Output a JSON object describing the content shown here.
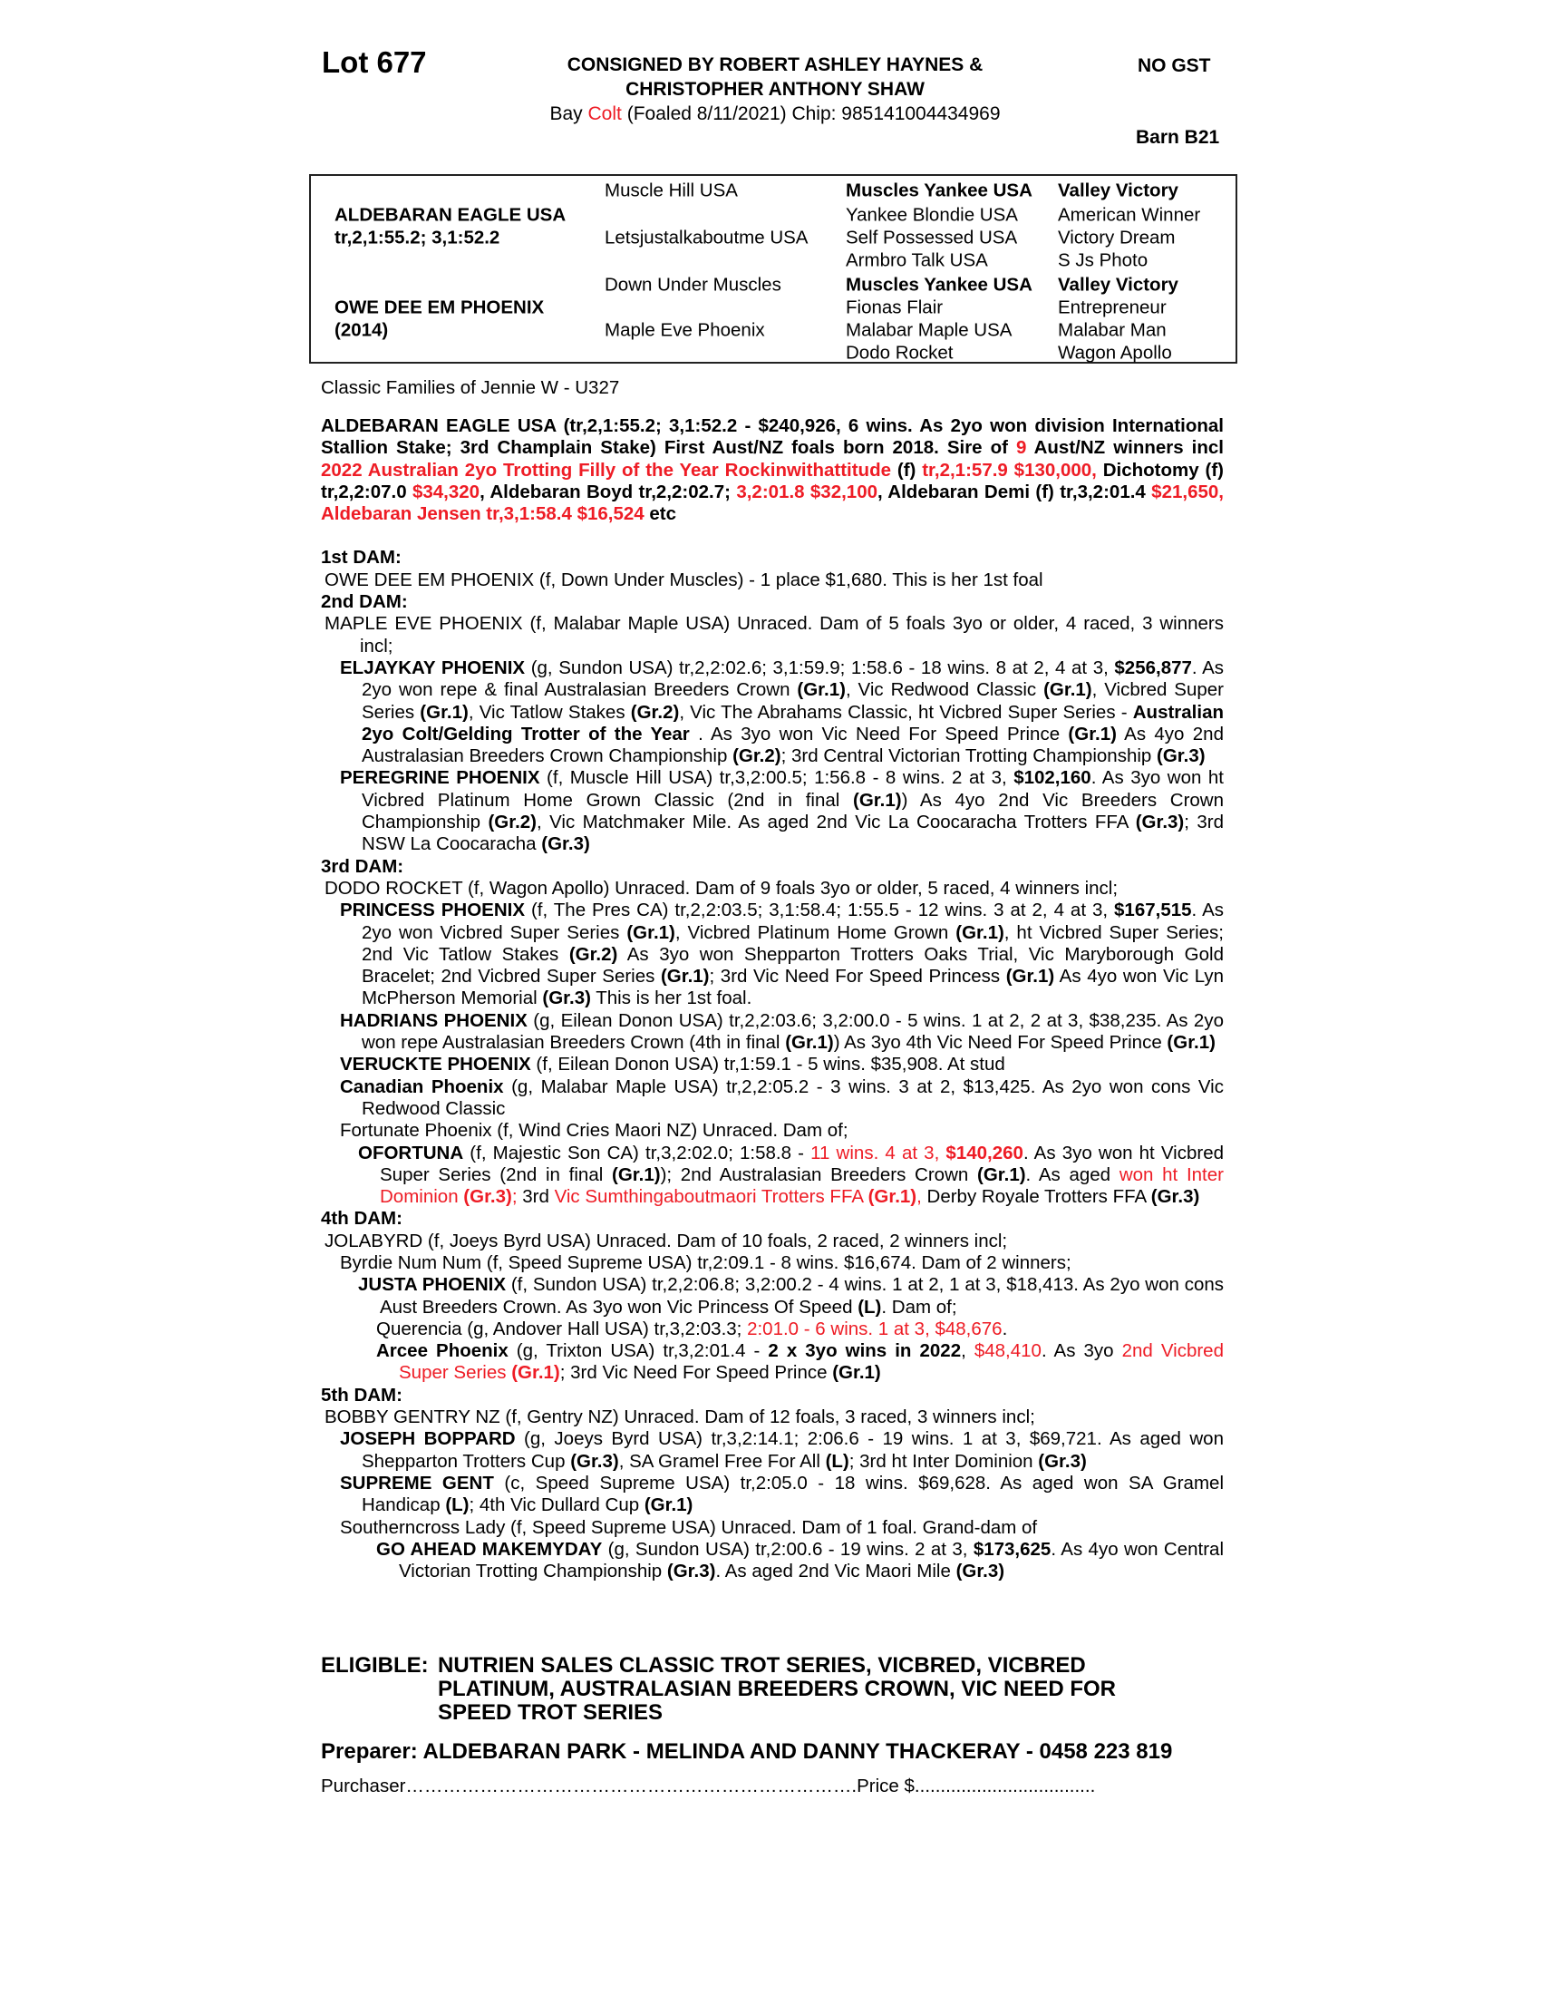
{
  "header": {
    "lot": "Lot 677",
    "consigned_line1": "CONSIGNED BY ROBERT ASHLEY HAYNES &",
    "consigned_line2": "CHRISTOPHER ANTHONY SHAW",
    "colour": "Bay",
    "sex": "Colt",
    "foaled_chip": "(Foaled 8/11/2021) Chip: 985141004434969",
    "gst": "NO GST",
    "barn": "Barn B21"
  },
  "colors": {
    "highlight": "#ee1c25",
    "text": "#000000"
  },
  "pedigree": {
    "col1": [
      "",
      "ALDEBARAN EAGLE USA",
      "tr,2,1:55.2; 3,1:52.2",
      "",
      "",
      "OWE DEE EM PHOENIX",
      "(2014)",
      ""
    ],
    "col2": [
      "Muscle Hill USA",
      "",
      "Letsjustalkaboutme USA",
      "",
      "Down Under Muscles",
      "",
      "Maple Eve Phoenix",
      ""
    ],
    "col3": [
      "Muscles Yankee USA",
      "Yankee Blondie USA",
      "Self Possessed USA",
      "Armbro Talk USA",
      "Muscles Yankee USA",
      "Fionas Flair",
      "Malabar Maple USA",
      "Dodo Rocket"
    ],
    "col4": [
      "Valley Victory",
      "American Winner",
      "Victory Dream",
      "S Js Photo",
      "Valley Victory",
      "Entrepreneur",
      "Malabar Man",
      "Wagon Apollo"
    ],
    "bold_rows": [
      0,
      4
    ]
  },
  "family": "Classic Families of Jennie W - U327",
  "body": {
    "paragraphs": [
      {
        "cls": "sire",
        "segs": [
          {
            "t": "ALDEBARAN EAGLE USA (tr,2,1:55.2; 3,1:52.2 - $240,926, 6 wins. As 2yo won division International Stallion Stake; 3rd Champlain Stake) First Aust/NZ foals born 2018. Sire of "
          },
          {
            "t": "9",
            "r": true
          },
          {
            "t": " Aust/NZ winners incl "
          },
          {
            "t": "2022 Australian 2yo Trotting Filly of the Year Rockinwithattitude",
            "r": true
          },
          {
            "t": " (f) "
          },
          {
            "t": "tr,2,1:57.9 $130,000,",
            "r": true
          },
          {
            "t": " Dichotomy (f) tr,2,2:07.0 "
          },
          {
            "t": "$34,320",
            "r": true
          },
          {
            "t": ", Aldebaran Boyd tr,2,2:02.7; "
          },
          {
            "t": "3,2:01.8 $32,100",
            "r": true
          },
          {
            "t": ", Aldebaran Demi (f) tr,3,2:01.4 "
          },
          {
            "t": "$21,650, Aldebaran Jensen tr,3,1:58.4 $16,524",
            "r": true
          },
          {
            "t": " etc"
          }
        ]
      },
      {
        "cls": "head",
        "segs": [
          {
            "t": "1st DAM:"
          }
        ]
      },
      {
        "cls": "dam",
        "segs": [
          {
            "t": "OWE DEE EM PHOENIX (f, Down Under Muscles) - 1 place $1,680. This is her 1st foal"
          }
        ]
      },
      {
        "cls": "head",
        "segs": [
          {
            "t": "2nd DAM:"
          }
        ]
      },
      {
        "cls": "dam",
        "segs": [
          {
            "t": "MAPLE EVE PHOENIX (f, Malabar Maple USA) Unraced. Dam of 5 foals 3yo or older, 4 raced, 3 winners incl;"
          }
        ]
      },
      {
        "cls": "l1",
        "segs": [
          {
            "t": "ELJAYKAY PHOENIX",
            "b": true
          },
          {
            "t": " (g, Sundon USA) tr,2,2:02.6; 3,1:59.9; 1:58.6 - 18 wins. 8 at 2, 4 at 3, "
          },
          {
            "t": "$256,877",
            "b": true
          },
          {
            "t": ". As 2yo won repe & final Australasian Breeders Crown "
          },
          {
            "t": "(Gr.1)",
            "b": true
          },
          {
            "t": ", Vic Redwood Classic "
          },
          {
            "t": "(Gr.1)",
            "b": true
          },
          {
            "t": ", Vicbred Super Series "
          },
          {
            "t": "(Gr.1)",
            "b": true
          },
          {
            "t": ", Vic Tatlow Stakes "
          },
          {
            "t": "(Gr.2)",
            "b": true
          },
          {
            "t": ", Vic The Abrahams Classic, ht Vicbred Super Series - "
          },
          {
            "t": "Australian 2yo Colt/Gelding Trotter of the Year",
            "b": true
          },
          {
            "t": " . As 3yo won Vic Need For Speed Prince "
          },
          {
            "t": "(Gr.1)",
            "b": true
          },
          {
            "t": " As 4yo 2nd Australasian Breeders Crown Championship "
          },
          {
            "t": "(Gr.2)",
            "b": true
          },
          {
            "t": "; 3rd Central Victorian Trotting Championship "
          },
          {
            "t": "(Gr.3)",
            "b": true
          }
        ]
      },
      {
        "cls": "l1",
        "segs": [
          {
            "t": "PEREGRINE PHOENIX",
            "b": true
          },
          {
            "t": " (f, Muscle Hill USA) tr,3,2:00.5; 1:56.8 - 8 wins. 2 at 3, "
          },
          {
            "t": "$102,160",
            "b": true
          },
          {
            "t": ". As 3yo won ht Vicbred Platinum Home Grown Classic (2nd in final "
          },
          {
            "t": "(Gr.1)",
            "b": true
          },
          {
            "t": ") As 4yo 2nd Vic Breeders Crown Championship "
          },
          {
            "t": "(Gr.2)",
            "b": true
          },
          {
            "t": ", Vic Matchmaker Mile. As aged 2nd Vic La Coocaracha Trotters FFA "
          },
          {
            "t": "(Gr.3)",
            "b": true
          },
          {
            "t": "; 3rd NSW La Coocaracha "
          },
          {
            "t": "(Gr.3)",
            "b": true
          }
        ]
      },
      {
        "cls": "head",
        "segs": [
          {
            "t": "3rd DAM:"
          }
        ]
      },
      {
        "cls": "dam",
        "segs": [
          {
            "t": "DODO ROCKET (f, Wagon Apollo) Unraced. Dam of 9 foals 3yo or older, 5 raced, 4 winners incl;"
          }
        ]
      },
      {
        "cls": "l1",
        "segs": [
          {
            "t": "PRINCESS PHOENIX",
            "b": true
          },
          {
            "t": " (f, The Pres CA) tr,2,2:03.5; 3,1:58.4; 1:55.5 - 12 wins. 3 at 2, 4 at 3, "
          },
          {
            "t": "$167,515",
            "b": true
          },
          {
            "t": ". As 2yo won Vicbred Super Series "
          },
          {
            "t": "(Gr.1)",
            "b": true
          },
          {
            "t": ", Vicbred Platinum Home Grown "
          },
          {
            "t": "(Gr.1)",
            "b": true
          },
          {
            "t": ", ht Vicbred Super Series; 2nd Vic Tatlow Stakes "
          },
          {
            "t": "(Gr.2)",
            "b": true
          },
          {
            "t": " As 3yo won Shepparton Trotters Oaks Trial, Vic Maryborough Gold Bracelet; 2nd Vicbred Super Series "
          },
          {
            "t": "(Gr.1)",
            "b": true
          },
          {
            "t": "; 3rd Vic Need For Speed Princess "
          },
          {
            "t": "(Gr.1)",
            "b": true
          },
          {
            "t": " As 4yo won Vic Lyn McPherson Memorial "
          },
          {
            "t": "(Gr.3)",
            "b": true
          },
          {
            "t": " This is her 1st foal."
          }
        ]
      },
      {
        "cls": "l1",
        "segs": [
          {
            "t": "HADRIANS PHOENIX",
            "b": true
          },
          {
            "t": " (g, Eilean Donon USA) tr,2,2:03.6; 3,2:00.0 - 5 wins. 1 at 2, 2 at 3, $38,235. As 2yo won repe Australasian Breeders Crown (4th in final "
          },
          {
            "t": "(Gr.1)",
            "b": true
          },
          {
            "t": ") As 3yo 4th Vic Need For Speed Prince "
          },
          {
            "t": "(Gr.1)",
            "b": true
          }
        ]
      },
      {
        "cls": "l1",
        "segs": [
          {
            "t": "VERUCKTE PHOENIX",
            "b": true
          },
          {
            "t": " (f, Eilean Donon USA) tr,1:59.1 - 5 wins. $35,908. At stud"
          }
        ]
      },
      {
        "cls": "l1",
        "segs": [
          {
            "t": "Canadian Phoenix",
            "b": true
          },
          {
            "t": " (g, Malabar Maple USA) tr,2,2:05.2 - 3 wins. 3 at 2, $13,425. As 2yo won cons Vic Redwood Classic"
          }
        ]
      },
      {
        "cls": "l1",
        "segs": [
          {
            "t": "Fortunate Phoenix (f, Wind Cries Maori NZ) Unraced. Dam of;"
          }
        ]
      },
      {
        "cls": "l2",
        "segs": [
          {
            "t": "OFORTUNA",
            "b": true
          },
          {
            "t": " (f, Majestic Son CA) tr,3,2:02.0; 1:58.8 - "
          },
          {
            "t": "11 wins. 4 at 3, ",
            "r": true
          },
          {
            "t": "$140,260",
            "r": true,
            "b": true
          },
          {
            "t": ". As 3yo won ht Vicbred Super Series (2nd in final "
          },
          {
            "t": "(Gr.1)",
            "b": true
          },
          {
            "t": "); 2nd Australasian Breeders Crown "
          },
          {
            "t": "(Gr.1)",
            "b": true
          },
          {
            "t": ". As aged "
          },
          {
            "t": "won ht Inter Dominion ",
            "r": true
          },
          {
            "t": "(Gr.3)",
            "r": true,
            "b": true
          },
          {
            "t": ";",
            "r": true
          },
          {
            "t": " 3rd "
          },
          {
            "t": "Vic Sumthingaboutmaori Trotters FFA ",
            "r": true
          },
          {
            "t": "(Gr.1)",
            "r": true,
            "b": true
          },
          {
            "t": ",",
            "r": true
          },
          {
            "t": " Derby Royale Trotters FFA "
          },
          {
            "t": "(Gr.3)",
            "b": true
          }
        ]
      },
      {
        "cls": "head",
        "segs": [
          {
            "t": "4th DAM:"
          }
        ]
      },
      {
        "cls": "dam",
        "segs": [
          {
            "t": "JOLABYRD (f, Joeys Byrd USA) Unraced. Dam of 10 foals, 2 raced, 2 winners incl;"
          }
        ]
      },
      {
        "cls": "l1",
        "segs": [
          {
            "t": "Byrdie Num Num (f, Speed Supreme USA) tr,2:09.1 - 8 wins. $16,674. Dam of 2 winners;"
          }
        ]
      },
      {
        "cls": "l2",
        "segs": [
          {
            "t": "JUSTA PHOENIX",
            "b": true
          },
          {
            "t": " (f, Sundon USA) tr,2,2:06.8; 3,2:00.2 - 4 wins. 1 at 2, 1 at 3, $18,413. As 2yo won cons Aust Breeders Crown. As 3yo won Vic Princess Of Speed "
          },
          {
            "t": "(L)",
            "b": true
          },
          {
            "t": ". Dam of;"
          }
        ]
      },
      {
        "cls": "l3",
        "segs": [
          {
            "t": "Querencia (g, Andover Hall USA) tr,3,2:03.3; "
          },
          {
            "t": "2:01.0 - 6 wins. 1 at 3, $48,676",
            "r": true
          },
          {
            "t": "."
          }
        ]
      },
      {
        "cls": "l3",
        "segs": [
          {
            "t": "Arcee Phoenix",
            "b": true
          },
          {
            "t": " (g, Trixton USA) tr,3,2:01.4 - "
          },
          {
            "t": "2 x 3yo wins in 2022",
            "b": true
          },
          {
            "t": ", "
          },
          {
            "t": "$48,410",
            "r": true
          },
          {
            "t": ". As 3yo "
          },
          {
            "t": "2nd Vicbred Super Series ",
            "r": true
          },
          {
            "t": "(Gr.1)",
            "r": true,
            "b": true
          },
          {
            "t": "; 3rd Vic Need For Speed Prince "
          },
          {
            "t": "(Gr.1)",
            "b": true
          }
        ]
      },
      {
        "cls": "head",
        "segs": [
          {
            "t": "5th DAM:"
          }
        ]
      },
      {
        "cls": "dam",
        "segs": [
          {
            "t": "BOBBY GENTRY NZ (f, Gentry NZ) Unraced. Dam of 12 foals, 3 raced, 3 winners incl;"
          }
        ]
      },
      {
        "cls": "l1",
        "segs": [
          {
            "t": "JOSEPH BOPPARD",
            "b": true
          },
          {
            "t": " (g, Joeys Byrd USA) tr,3,2:14.1; 2:06.6 - 19 wins. 1 at 3, $69,721. As aged won Shepparton Trotters Cup "
          },
          {
            "t": "(Gr.3)",
            "b": true
          },
          {
            "t": ", SA Gramel Free For All "
          },
          {
            "t": "(L)",
            "b": true
          },
          {
            "t": "; 3rd ht Inter Dominion "
          },
          {
            "t": "(Gr.3)",
            "b": true
          }
        ]
      },
      {
        "cls": "l1",
        "segs": [
          {
            "t": "SUPREME GENT",
            "b": true
          },
          {
            "t": " (c, Speed Supreme USA) tr,2:05.0 - 18 wins. $69,628. As aged won SA Gramel Handicap "
          },
          {
            "t": "(L)",
            "b": true
          },
          {
            "t": "; 4th Vic Dullard Cup "
          },
          {
            "t": "(Gr.1)",
            "b": true
          }
        ]
      },
      {
        "cls": "l1",
        "segs": [
          {
            "t": "Southerncross Lady (f, Speed Supreme USA) Unraced. Dam of 1 foal. Grand-dam of"
          }
        ]
      },
      {
        "cls": "l3",
        "segs": [
          {
            "t": "GO AHEAD MAKEMYDAY",
            "b": true
          },
          {
            "t": " (g, Sundon USA) tr,2:00.6 - 19 wins. 2 at 3, "
          },
          {
            "t": "$173,625",
            "b": true
          },
          {
            "t": ". As 4yo won Central Victorian Trotting Championship "
          },
          {
            "t": "(Gr.3)",
            "b": true
          },
          {
            "t": ". As aged 2nd Vic Maori Mile "
          },
          {
            "t": "(Gr.3)",
            "b": true
          }
        ]
      }
    ]
  },
  "eligible": {
    "label": "ELIGIBLE:",
    "text": "NUTRIEN SALES CLASSIC TROT SERIES, VICBRED, VICBRED PLATINUM, AUSTRALASIAN BREEDERS CROWN, VIC NEED FOR SPEED TROT SERIES"
  },
  "preparer": "Preparer: ALDEBARAN PARK - MELINDA AND DANNY THACKERAY - 0458 223 819",
  "purchaser": "Purchaser……………………………………………………………….Price $..................................."
}
